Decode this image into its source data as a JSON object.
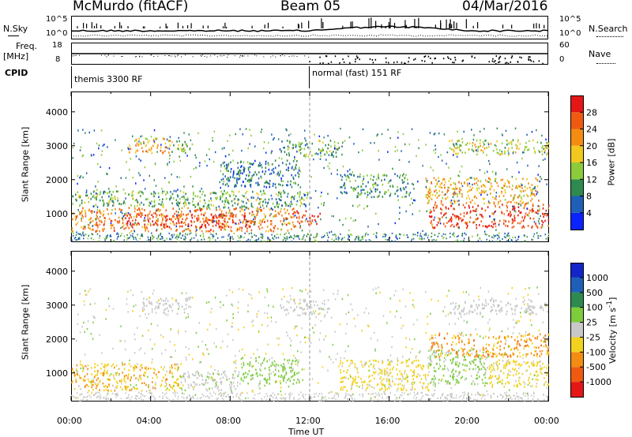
{
  "header": {
    "station": "McMurdo (fitACF)",
    "beam": "Beam 05",
    "date": "04/Mar/2016"
  },
  "noise_panel": {
    "left_label": "N.Sky",
    "right_label": "N.Search",
    "left_ticks": [
      "10^5",
      "10^0"
    ],
    "right_ticks": [
      "10^5",
      "10^0"
    ]
  },
  "freq_panel": {
    "left_label_1": "Freq.",
    "left_label_2": "[MHz]",
    "right_label": "Nave",
    "left_ticks": [
      "18",
      "8"
    ],
    "right_ticks": [
      "60",
      "0"
    ]
  },
  "cpid": {
    "label": "CPID",
    "segments": [
      {
        "text": "themis 3300 RF",
        "start_hour": 0
      },
      {
        "text": "normal (fast) 151 RF",
        "start_hour": 12
      }
    ]
  },
  "x_axis": {
    "label": "Time UT",
    "ticks": [
      "00:00",
      "04:00",
      "08:00",
      "12:00",
      "16:00",
      "20:00",
      "00:00"
    ],
    "range_hours": [
      0,
      24
    ]
  },
  "colors": {
    "power": [
      "#0a23ff",
      "#1f5fb8",
      "#2f8a4f",
      "#8ccc3c",
      "#f2c81e",
      "#f58c12",
      "#ef5a10",
      "#e51616"
    ],
    "velocity": [
      "#e51616",
      "#ef5a10",
      "#f58c12",
      "#f2d21e",
      "#c8c8c8",
      "#7ccc3c",
      "#2e8a4e",
      "#1f5fb8",
      "#1225c8"
    ]
  },
  "chart_data": [
    {
      "type": "heatmap",
      "title": "",
      "xlabel": "Time UT",
      "ylabel": "Slant Range [km]",
      "xlim": [
        0,
        24
      ],
      "ylim": [
        180,
        4600
      ],
      "yticks": [
        "1000",
        "2000",
        "3000",
        "4000"
      ],
      "colorbar_label": "Power [dB]",
      "colorbar_ticks": [
        "4",
        "8",
        "12",
        "16",
        "20",
        "24",
        "28"
      ],
      "colorbar_range": [
        0,
        32
      ],
      "regions": [
        {
          "t0": 0.0,
          "t1": 11.5,
          "r0": 500,
          "r1": 1200,
          "value": 24
        },
        {
          "t0": 2.5,
          "t1": 9.0,
          "r0": 600,
          "r1": 1000,
          "value": 28
        },
        {
          "t0": 0.0,
          "t1": 12.0,
          "r0": 1200,
          "r1": 1700,
          "value": 12
        },
        {
          "t0": 11.0,
          "t1": 12.5,
          "r0": 700,
          "r1": 1100,
          "value": 28
        },
        {
          "t0": 2.8,
          "t1": 5.0,
          "r0": 2800,
          "r1": 3250,
          "value": 20
        },
        {
          "t0": 5.0,
          "t1": 6.0,
          "r0": 2800,
          "r1": 3200,
          "value": 14
        },
        {
          "t0": 18.0,
          "t1": 24.0,
          "r0": 600,
          "r1": 1300,
          "value": 28
        },
        {
          "t0": 17.8,
          "t1": 23.5,
          "r0": 1300,
          "r1": 2100,
          "value": 20
        },
        {
          "t0": 19.0,
          "t1": 24.0,
          "r0": 2750,
          "r1": 3200,
          "value": 16
        },
        {
          "t0": 13.5,
          "t1": 17.0,
          "r0": 1500,
          "r1": 2200,
          "value": 10
        },
        {
          "t0": 10.5,
          "t1": 13.5,
          "r0": 2700,
          "r1": 3200,
          "value": 12
        },
        {
          "t0": 7.5,
          "t1": 11.5,
          "r0": 1800,
          "r1": 2600,
          "value": 8
        }
      ]
    },
    {
      "type": "heatmap",
      "title": "",
      "xlabel": "Time UT",
      "ylabel": "Slant Range [km]",
      "xlim": [
        0,
        24
      ],
      "ylim": [
        180,
        4600
      ],
      "yticks": [
        "1000",
        "2000",
        "3000",
        "4000"
      ],
      "colorbar_label": "Velocity [m s^-1]",
      "colorbar_ticks": [
        "1000",
        "500",
        "100",
        "25",
        "-25",
        "-100",
        "-500",
        "-1000"
      ],
      "colorbar_range": [
        -1000,
        1000
      ],
      "regions": [
        {
          "t0": 0.0,
          "t1": 5.5,
          "r0": 500,
          "r1": 1300,
          "value": -300
        },
        {
          "t0": 5.5,
          "t1": 8.5,
          "r0": 500,
          "r1": 1100,
          "value": 80
        },
        {
          "t0": 8.5,
          "t1": 11.5,
          "r0": 700,
          "r1": 1500,
          "value": 200
        },
        {
          "t0": 3.5,
          "t1": 6.0,
          "r0": 2750,
          "r1": 3250,
          "value": 0
        },
        {
          "t0": 10.5,
          "t1": 13.0,
          "r0": 2700,
          "r1": 3200,
          "value": 0
        },
        {
          "t0": 13.5,
          "t1": 18.0,
          "r0": 500,
          "r1": 1400,
          "value": -200
        },
        {
          "t0": 18.0,
          "t1": 21.0,
          "r0": 700,
          "r1": 1700,
          "value": 150
        },
        {
          "t0": 18.0,
          "t1": 24.0,
          "r0": 1500,
          "r1": 2200,
          "value": -400
        },
        {
          "t0": 21.0,
          "t1": 24.0,
          "r0": 600,
          "r1": 1400,
          "value": -200
        },
        {
          "t0": 19.0,
          "t1": 24.0,
          "r0": 2750,
          "r1": 3200,
          "value": 0
        }
      ]
    }
  ]
}
